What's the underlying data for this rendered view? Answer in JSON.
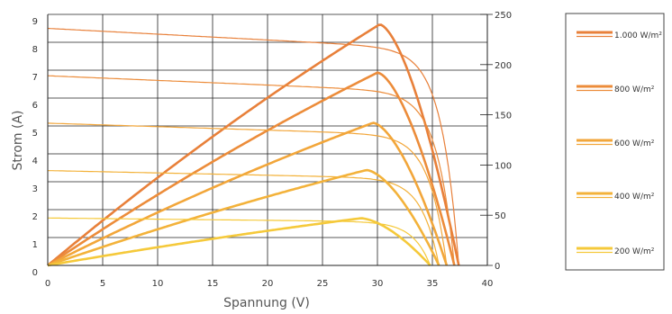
{
  "chart_data": {
    "type": "line",
    "title": "",
    "xlabel": "Spannung (V)",
    "ylabel": "Strom (A)",
    "xlim": [
      0,
      40
    ],
    "ylim_left": [
      0,
      9
    ],
    "ylim_right": [
      0,
      250
    ],
    "x_ticks": [
      "0",
      "5",
      "10",
      "15",
      "20",
      "25",
      "30",
      "35",
      "40"
    ],
    "y_left_ticks": [
      "0",
      "1",
      "2",
      "3",
      "4",
      "5",
      "6",
      "7",
      "8",
      "9"
    ],
    "y_right_ticks": [
      "0",
      "50",
      "100",
      "150",
      "200",
      "250"
    ],
    "grid": true,
    "legend_position": "right",
    "series": [
      {
        "name": "1.000 W/m²",
        "color": "#e8803a",
        "isc": 8.5,
        "voc": 37.4,
        "vmpp": 30.2,
        "pmax": 240
      },
      {
        "name": "800 W/m²",
        "color": "#ec8c3a",
        "isc": 6.8,
        "voc": 37.0,
        "vmpp": 30.0,
        "pmax": 192
      },
      {
        "name": "600 W/m²",
        "color": "#f2a63a",
        "isc": 5.1,
        "voc": 36.3,
        "vmpp": 29.6,
        "pmax": 142
      },
      {
        "name": "400 W/m²",
        "color": "#f3b23a",
        "isc": 3.4,
        "voc": 35.6,
        "vmpp": 29.0,
        "pmax": 95
      },
      {
        "name": "200 W/m²",
        "color": "#f5c93a",
        "isc": 1.7,
        "voc": 34.8,
        "vmpp": 28.5,
        "pmax": 47
      }
    ]
  }
}
